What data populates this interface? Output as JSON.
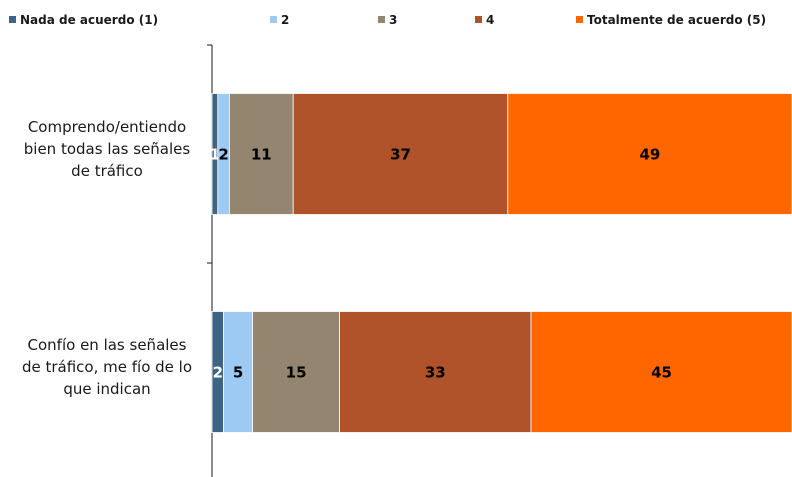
{
  "chart_data": {
    "type": "bar",
    "orientation": "horizontal",
    "stacked": true,
    "legend_position": "top",
    "grid": false,
    "xlim": [
      0,
      100
    ],
    "categories": [
      [
        "Comprendo/entiendo",
        "bien todas las señales",
        "de tráfico"
      ],
      [
        "Confío en las señales",
        "de tráfico, me fío de lo",
        "que indican"
      ]
    ],
    "series": [
      {
        "name": "Nada de acuerdo (1)",
        "color": "#3d6483",
        "label_color": "#ffffff",
        "values": [
          1,
          2
        ],
        "labels": [
          "1",
          "2"
        ]
      },
      {
        "name": "2",
        "color": "#9dcaf2",
        "label_color": "#000000",
        "values": [
          2,
          5
        ],
        "labels": [
          "2",
          "5"
        ]
      },
      {
        "name": "3",
        "color": "#948570",
        "label_color": "#000000",
        "values": [
          11,
          15
        ],
        "labels": [
          "11",
          "15"
        ]
      },
      {
        "name": "4",
        "color": "#b0522a",
        "label_color": "#000000",
        "values": [
          37,
          33
        ],
        "labels": [
          "37",
          "33"
        ]
      },
      {
        "name": "Totalmente de acuerdo (5)",
        "color": "#ff6600",
        "label_color": "#000000",
        "values": [
          49,
          45
        ],
        "labels": [
          "49",
          "45"
        ]
      }
    ]
  }
}
